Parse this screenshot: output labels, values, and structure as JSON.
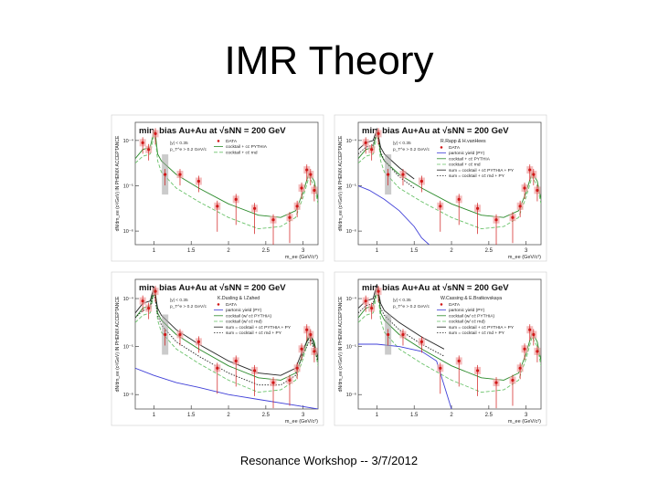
{
  "slide": {
    "title": "IMR Theory",
    "footer": "Resonance Workshop -- 3/7/2012"
  },
  "colors": {
    "data_point": "#d01818",
    "sys_box_light": "#f0a8a8",
    "sys_box_dark": "#a0a0a0",
    "pythia": "#2a8a2a",
    "rnd": "#6ac26a",
    "partonic": "#4040d8",
    "sum_line": "#222222"
  },
  "chart_data": [
    {
      "type": "line",
      "panel": "top-left",
      "title": "min. bias Au+Au at √sNN = 200 GeV",
      "ylabel": "dN/dm_ee (c²/GeV) IN PHENIX ACCEPTANCE",
      "xlabel": "m_ee (GeV/c²)",
      "ylim_log10": [
        -6.3,
        -3.6
      ],
      "xlim": [
        0.75,
        3.2
      ],
      "x_ticks": [
        1,
        1.5,
        2,
        2.5,
        3
      ],
      "y_ticks": [
        "10⁻⁴",
        "10⁻⁵",
        "10⁻⁶"
      ],
      "legend": [
        "DATA",
        "cocktail + cc̄ PYTHIA",
        "cocktail + cc̄ rnd"
      ],
      "cuts": [
        "|y| < 0.35",
        "p_T^e > 0.2 GeV/c"
      ],
      "theory_label": "",
      "data_points": {
        "x": [
          0.85,
          0.93,
          1.02,
          1.15,
          1.35,
          1.6,
          1.85,
          2.1,
          2.35,
          2.6,
          2.82,
          2.92,
          2.98,
          3.05,
          3.1,
          3.15
        ],
        "y": [
          -4.05,
          -4.2,
          -3.85,
          -4.75,
          -4.75,
          -4.9,
          -5.45,
          -5.3,
          -5.5,
          -5.75,
          -5.7,
          -5.45,
          -5.05,
          -4.65,
          -4.75,
          -5.1
        ]
      },
      "series": [
        {
          "name": "cocktail + cc̄ PYTHIA",
          "style": "solid",
          "color": "#2a8a2a",
          "x": [
            0.75,
            0.85,
            0.95,
            1.0,
            1.02,
            1.05,
            1.1,
            1.3,
            1.6,
            2.0,
            2.4,
            2.7,
            2.9,
            3.0,
            3.08,
            3.15,
            3.2
          ],
          "y": [
            -4.4,
            -4.2,
            -4.15,
            -3.8,
            -3.85,
            -4.3,
            -4.45,
            -4.75,
            -5.05,
            -5.4,
            -5.65,
            -5.7,
            -5.55,
            -5.15,
            -4.7,
            -4.9,
            -5.3
          ]
        },
        {
          "name": "cocktail + cc̄ rnd",
          "style": "dashed",
          "color": "#6ac26a",
          "x": [
            0.75,
            0.85,
            0.95,
            1.0,
            1.02,
            1.05,
            1.1,
            1.3,
            1.6,
            2.0,
            2.4,
            2.7,
            2.9,
            3.0,
            3.08,
            3.15,
            3.2
          ],
          "y": [
            -4.5,
            -4.35,
            -4.3,
            -3.9,
            -3.95,
            -4.45,
            -4.7,
            -5.05,
            -5.35,
            -5.7,
            -5.95,
            -5.9,
            -5.7,
            -5.25,
            -4.8,
            -5.0,
            -5.4
          ]
        }
      ]
    },
    {
      "type": "line",
      "panel": "top-right",
      "title": "min. bias Au+Au at √sNN = 200 GeV",
      "ylabel": "dN/dm_ee (c²/GeV) IN PHENIX ACCEPTANCE",
      "xlabel": "m_ee (GeV/c²)",
      "ylim_log10": [
        -6.3,
        -3.6
      ],
      "xlim": [
        0.75,
        3.2
      ],
      "x_ticks": [
        1,
        1.5,
        2,
        2.5,
        3
      ],
      "y_ticks": [
        "10⁻⁴",
        "10⁻⁵",
        "10⁻⁶"
      ],
      "legend": [
        "DATA",
        "partonic yield (PY)",
        "cocktail + cc̄ PYTHIA",
        "cocktail + cc̄ rnd",
        "sum = cocktail + cc̄ PYTHIA + PY",
        "sum = cocktail + cc̄ rnd + PY"
      ],
      "cuts": [
        "|y| < 0.35",
        "p_T^e > 0.2 GeV/c"
      ],
      "theory_label": "R.Rapp & H.vanHees",
      "data_points": {
        "x": [
          0.85,
          0.93,
          1.02,
          1.15,
          1.35,
          1.6,
          1.85,
          2.1,
          2.35,
          2.6,
          2.82,
          2.92,
          2.98,
          3.05,
          3.1,
          3.15
        ],
        "y": [
          -4.05,
          -4.2,
          -3.85,
          -4.75,
          -4.75,
          -4.9,
          -5.45,
          -5.3,
          -5.5,
          -5.75,
          -5.7,
          -5.45,
          -5.05,
          -4.65,
          -4.75,
          -5.1
        ]
      },
      "series": [
        {
          "name": "cocktail + cc̄ PYTHIA",
          "style": "solid",
          "color": "#2a8a2a",
          "x": [
            0.75,
            0.85,
            0.95,
            1.0,
            1.02,
            1.05,
            1.1,
            1.3,
            1.6,
            2.0,
            2.4,
            2.7,
            2.9,
            3.0,
            3.08,
            3.15,
            3.2
          ],
          "y": [
            -4.4,
            -4.2,
            -4.15,
            -3.8,
            -3.85,
            -4.3,
            -4.45,
            -4.75,
            -5.05,
            -5.4,
            -5.65,
            -5.7,
            -5.55,
            -5.15,
            -4.7,
            -4.9,
            -5.3
          ]
        },
        {
          "name": "cocktail + cc̄ rnd",
          "style": "dashed",
          "color": "#6ac26a",
          "x": [
            0.75,
            0.85,
            0.95,
            1.0,
            1.02,
            1.05,
            1.1,
            1.3,
            1.6,
            2.0,
            2.4,
            2.7,
            2.9,
            3.0,
            3.08,
            3.15,
            3.2
          ],
          "y": [
            -4.5,
            -4.35,
            -4.3,
            -3.9,
            -3.95,
            -4.45,
            -4.7,
            -5.05,
            -5.35,
            -5.7,
            -5.95,
            -5.9,
            -5.7,
            -5.25,
            -4.8,
            -5.0,
            -5.4
          ]
        },
        {
          "name": "partonic yield (PY)",
          "style": "solid",
          "color": "#4040d8",
          "x": [
            0.75,
            0.9,
            1.1,
            1.3,
            1.5,
            1.6,
            1.7
          ],
          "y": [
            -5.0,
            -5.1,
            -5.3,
            -5.55,
            -5.9,
            -6.15,
            -6.3
          ]
        },
        {
          "name": "sum = cocktail + cc̄ PYTHIA + PY",
          "style": "solid",
          "color": "#222222",
          "x": [
            0.75,
            0.85,
            0.95,
            1.0,
            1.05,
            1.1,
            1.3,
            1.5
          ],
          "y": [
            -4.2,
            -4.05,
            -4.0,
            -3.75,
            -4.15,
            -4.3,
            -4.6,
            -4.85
          ]
        },
        {
          "name": "sum = cocktail + cc̄ rnd + PY",
          "style": "dotted",
          "color": "#222222",
          "x": [
            0.75,
            0.85,
            0.95,
            1.0,
            1.05,
            1.1,
            1.3,
            1.5
          ],
          "y": [
            -4.3,
            -4.15,
            -4.1,
            -3.8,
            -4.25,
            -4.45,
            -4.8,
            -5.05
          ]
        }
      ]
    },
    {
      "type": "line",
      "panel": "bottom-left",
      "title": "min. bias Au+Au at √sNN = 200 GeV",
      "ylabel": "dN/dm_ee (c²/GeV) IN PHENIX ACCEPTANCE",
      "xlabel": "m_ee (GeV/c²)",
      "ylim_log10": [
        -6.3,
        -3.6
      ],
      "xlim": [
        0.75,
        3.2
      ],
      "x_ticks": [
        1,
        1.5,
        2,
        2.5,
        3
      ],
      "y_ticks": [
        "10⁻⁴",
        "10⁻⁵",
        "10⁻⁶"
      ],
      "legend": [
        "DATA",
        "partonic yield (PY)",
        "cocktail (w/ cc̄ PYTHIA)",
        "cocktail (w/ cc̄ rnd)",
        "sum = cocktail + cc̄ PYTHIA + PY",
        "sum = cocktail + cc̄ rnd + PY"
      ],
      "cuts": [
        "|y| < 0.35",
        "p_T^e > 0.2 GeV/c"
      ],
      "theory_label": "K.Dusling & I.Zahed",
      "data_points": {
        "x": [
          0.85,
          0.93,
          1.02,
          1.15,
          1.35,
          1.6,
          1.85,
          2.1,
          2.35,
          2.6,
          2.82,
          2.92,
          2.98,
          3.05,
          3.1,
          3.15
        ],
        "y": [
          -4.05,
          -4.2,
          -3.85,
          -4.75,
          -4.75,
          -4.9,
          -5.45,
          -5.3,
          -5.5,
          -5.75,
          -5.7,
          -5.45,
          -5.05,
          -4.65,
          -4.75,
          -5.1
        ]
      },
      "series": [
        {
          "name": "cocktail (w/ cc̄ PYTHIA)",
          "style": "solid",
          "color": "#2a8a2a",
          "x": [
            0.75,
            0.85,
            0.95,
            1.0,
            1.02,
            1.05,
            1.1,
            1.3,
            1.6,
            2.0,
            2.4,
            2.7,
            2.9,
            3.0,
            3.08,
            3.15,
            3.2
          ],
          "y": [
            -4.4,
            -4.2,
            -4.15,
            -3.8,
            -3.85,
            -4.3,
            -4.45,
            -4.75,
            -5.05,
            -5.4,
            -5.65,
            -5.7,
            -5.55,
            -5.15,
            -4.7,
            -4.9,
            -5.3
          ]
        },
        {
          "name": "cocktail (w/ cc̄ rnd)",
          "style": "dashed",
          "color": "#6ac26a",
          "x": [
            0.75,
            0.85,
            0.95,
            1.0,
            1.02,
            1.05,
            1.1,
            1.3,
            1.6,
            2.0,
            2.4,
            2.7,
            2.9,
            3.0,
            3.08,
            3.15,
            3.2
          ],
          "y": [
            -4.5,
            -4.35,
            -4.3,
            -3.9,
            -3.95,
            -4.45,
            -4.7,
            -5.05,
            -5.35,
            -5.7,
            -5.95,
            -5.9,
            -5.7,
            -5.25,
            -4.8,
            -5.0,
            -5.4
          ]
        },
        {
          "name": "partonic yield (PY)",
          "style": "solid",
          "color": "#4040d8",
          "x": [
            0.75,
            1.0,
            1.3,
            1.6,
            2.0,
            2.4,
            2.8,
            3.2
          ],
          "y": [
            -5.45,
            -5.6,
            -5.75,
            -5.85,
            -6.0,
            -6.1,
            -6.2,
            -6.3
          ]
        },
        {
          "name": "sum = cocktail + cc̄ PYTHIA + PY",
          "style": "solid",
          "color": "#222222",
          "x": [
            0.75,
            0.85,
            0.95,
            1.0,
            1.05,
            1.1,
            1.3,
            1.6,
            2.0,
            2.4,
            2.7,
            2.9,
            3.0,
            3.1,
            3.2
          ],
          "y": [
            -4.3,
            -4.1,
            -4.05,
            -3.75,
            -4.2,
            -4.35,
            -4.65,
            -4.95,
            -5.3,
            -5.55,
            -5.6,
            -5.45,
            -5.05,
            -4.75,
            -5.2
          ]
        },
        {
          "name": "sum = cocktail + cc̄ rnd + PY",
          "style": "dotted",
          "color": "#222222",
          "x": [
            0.75,
            0.85,
            0.95,
            1.0,
            1.05,
            1.1,
            1.3,
            1.6,
            2.0,
            2.4,
            2.7,
            2.9,
            3.0,
            3.1,
            3.2
          ],
          "y": [
            -4.4,
            -4.25,
            -4.2,
            -3.85,
            -4.35,
            -4.55,
            -4.9,
            -5.2,
            -5.55,
            -5.8,
            -5.8,
            -5.6,
            -5.15,
            -4.85,
            -5.3
          ]
        }
      ]
    },
    {
      "type": "line",
      "panel": "bottom-right",
      "title": "min. bias Au+Au at √sNN = 200 GeV",
      "ylabel": "dN/dm_ee (c²/GeV) IN PHENIX ACCEPTANCE",
      "xlabel": "m_ee (GeV/c²)",
      "ylim_log10": [
        -6.3,
        -3.6
      ],
      "xlim": [
        0.75,
        3.2
      ],
      "x_ticks": [
        1,
        1.5,
        2,
        2.5,
        3
      ],
      "y_ticks": [
        "10⁻⁴",
        "10⁻⁵",
        "10⁻⁶"
      ],
      "legend": [
        "DATA",
        "partonic yield (PY)",
        "cocktail (w/ cc̄ PYTHIA)",
        "cocktail (w/ cc̄ rnd)",
        "sum = cocktail + cc̄ PYTHIA + PY",
        "sum = cocktail + cc̄ rnd + PY"
      ],
      "cuts": [
        "|y| < 0.35",
        "p_T^e > 0.2 GeV/c"
      ],
      "theory_label": "W.Cassing & E.Bratkovskaya",
      "data_points": {
        "x": [
          0.85,
          0.93,
          1.02,
          1.15,
          1.35,
          1.6,
          1.85,
          2.1,
          2.35,
          2.6,
          2.82,
          2.92,
          2.98,
          3.05,
          3.1,
          3.15
        ],
        "y": [
          -4.05,
          -4.2,
          -3.85,
          -4.75,
          -4.75,
          -4.9,
          -5.45,
          -5.3,
          -5.5,
          -5.75,
          -5.7,
          -5.45,
          -5.05,
          -4.65,
          -4.75,
          -5.1
        ]
      },
      "series": [
        {
          "name": "cocktail (w/ cc̄ PYTHIA)",
          "style": "solid",
          "color": "#2a8a2a",
          "x": [
            0.75,
            0.85,
            0.95,
            1.0,
            1.02,
            1.05,
            1.1,
            1.3,
            1.6,
            2.0,
            2.4,
            2.7,
            2.9,
            3.0,
            3.08,
            3.15,
            3.2
          ],
          "y": [
            -4.4,
            -4.2,
            -4.15,
            -3.8,
            -3.85,
            -4.3,
            -4.45,
            -4.75,
            -5.05,
            -5.4,
            -5.65,
            -5.7,
            -5.55,
            -5.15,
            -4.7,
            -4.9,
            -5.3
          ]
        },
        {
          "name": "cocktail (w/ cc̄ rnd)",
          "style": "dashed",
          "color": "#6ac26a",
          "x": [
            0.75,
            0.85,
            0.95,
            1.0,
            1.02,
            1.05,
            1.1,
            1.3,
            1.6,
            2.0,
            2.4,
            2.7,
            2.9,
            3.0,
            3.08,
            3.15,
            3.2
          ],
          "y": [
            -4.5,
            -4.35,
            -4.3,
            -3.9,
            -3.95,
            -4.45,
            -4.7,
            -5.05,
            -5.35,
            -5.7,
            -5.95,
            -5.9,
            -5.7,
            -5.25,
            -4.8,
            -5.0,
            -5.4
          ]
        },
        {
          "name": "partonic yield (PY)",
          "style": "solid",
          "color": "#4040d8",
          "x": [
            0.75,
            1.0,
            1.3,
            1.6,
            1.8,
            1.9,
            2.0
          ],
          "y": [
            -4.95,
            -4.95,
            -5.0,
            -5.1,
            -5.3,
            -5.8,
            -6.3
          ]
        },
        {
          "name": "sum = cocktail + cc̄ PYTHIA + PY",
          "style": "solid",
          "color": "#222222",
          "x": [
            0.75,
            0.85,
            0.95,
            1.0,
            1.05,
            1.1,
            1.3,
            1.6,
            1.9
          ],
          "y": [
            -4.2,
            -4.05,
            -4.0,
            -3.7,
            -4.1,
            -4.25,
            -4.5,
            -4.8,
            -5.05
          ]
        },
        {
          "name": "sum = cocktail + cc̄ rnd + PY",
          "style": "dotted",
          "color": "#222222",
          "x": [
            0.75,
            0.85,
            0.95,
            1.0,
            1.05,
            1.1,
            1.3,
            1.6,
            1.9
          ],
          "y": [
            -4.3,
            -4.15,
            -4.1,
            -3.8,
            -4.2,
            -4.35,
            -4.65,
            -4.95,
            -5.2
          ]
        }
      ]
    }
  ]
}
